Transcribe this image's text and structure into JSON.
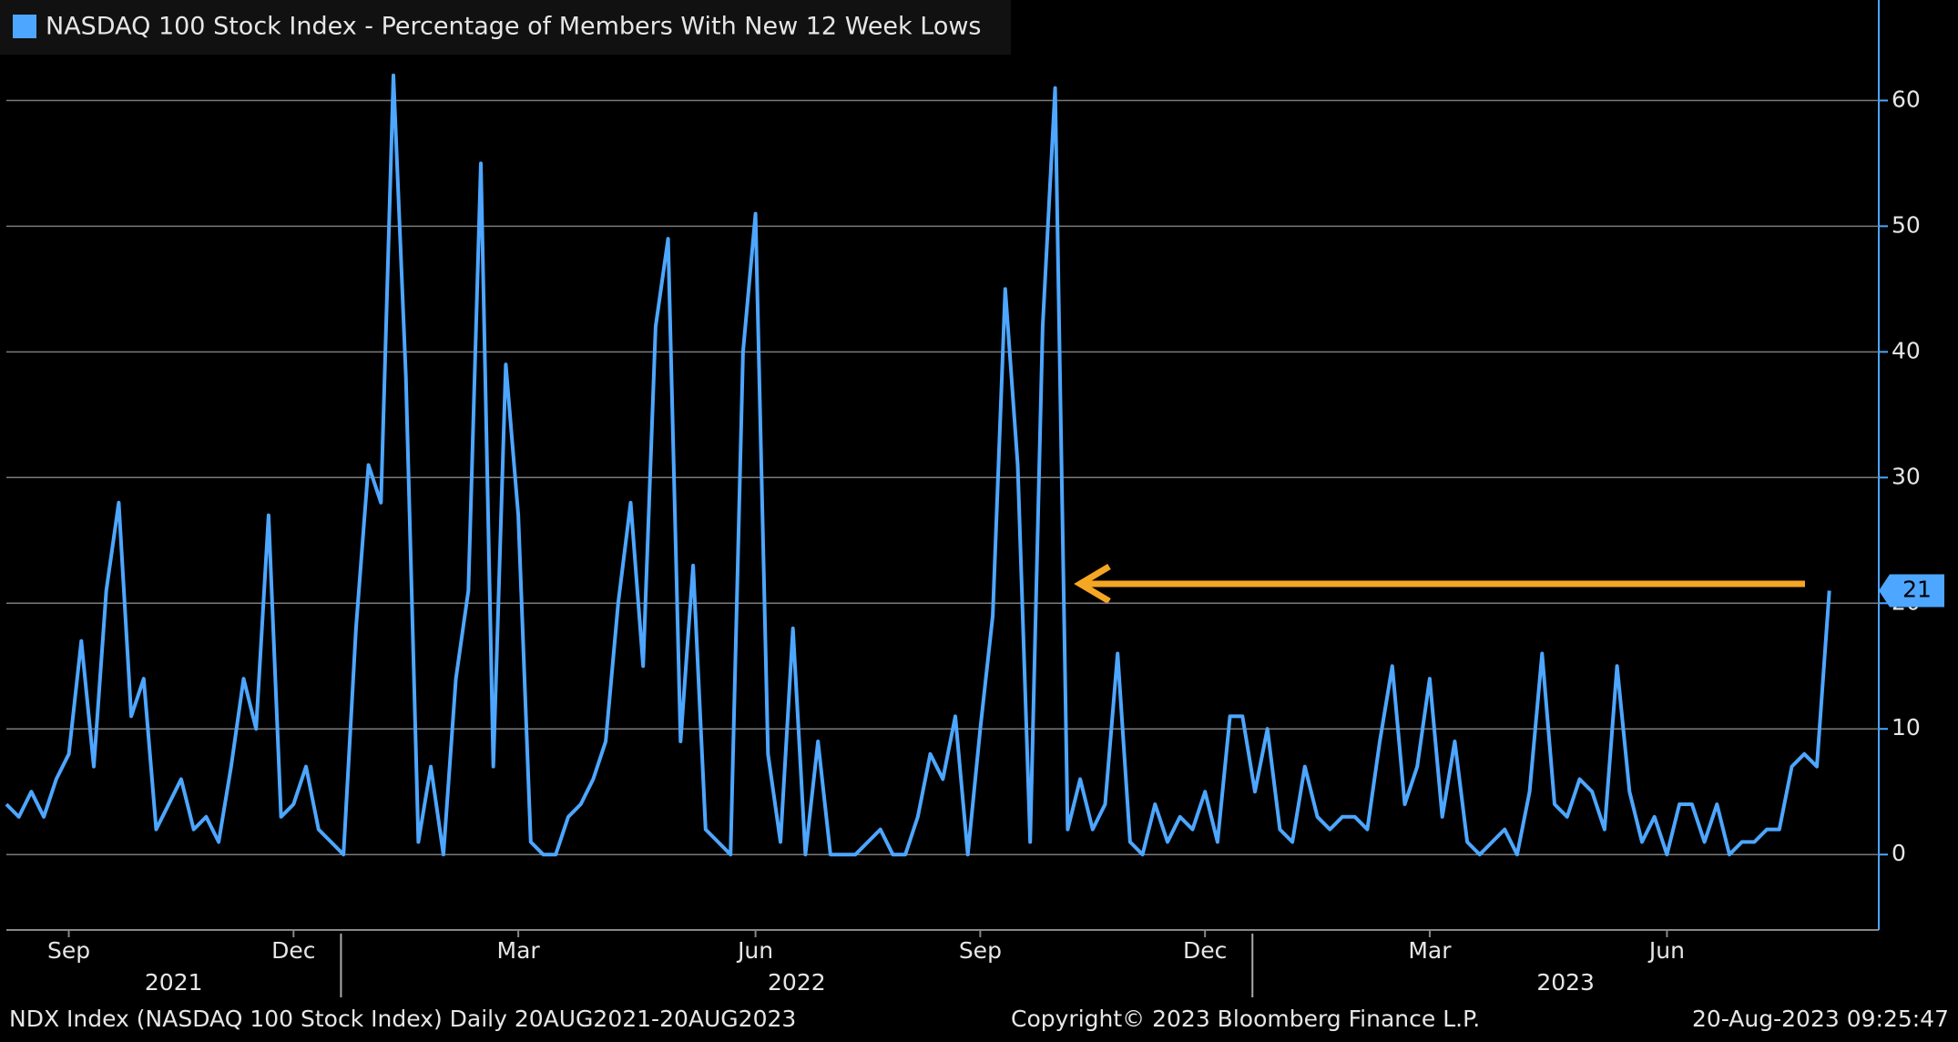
{
  "chart_data": {
    "type": "line",
    "title": "NASDAQ 100 Stock Index - Percentage of Members With New 12 Week Lows",
    "categories": [
      null,
      null,
      null,
      null,
      null,
      "Sep",
      null,
      null,
      null,
      null,
      null,
      null,
      null,
      null,
      null,
      null,
      null,
      null,
      null,
      null,
      null,
      null,
      null,
      "Dec",
      null,
      null,
      null,
      null,
      null,
      null,
      null,
      null,
      null,
      null,
      null,
      null,
      null,
      null,
      null,
      null,
      null,
      "Mar",
      null,
      null,
      null,
      null,
      null,
      null,
      null,
      null,
      null,
      null,
      null,
      null,
      null,
      null,
      null,
      null,
      null,
      null,
      "Jun",
      null,
      null,
      null,
      null,
      null,
      null,
      null,
      null,
      null,
      null,
      null,
      null,
      null,
      null,
      null,
      null,
      null,
      "Sep",
      null,
      null,
      null,
      null,
      null,
      null,
      null,
      null,
      null,
      null,
      null,
      null,
      null,
      null,
      null,
      null,
      null,
      "Dec",
      null,
      null,
      null,
      null,
      null,
      null,
      null,
      null,
      null,
      null,
      null,
      null,
      null,
      null,
      null,
      null,
      null,
      "Mar",
      null,
      null,
      null,
      null,
      null,
      null,
      null,
      null,
      null,
      null,
      null,
      null,
      null,
      null,
      null,
      null,
      null,
      null,
      "Jun",
      null,
      null,
      null,
      null,
      null,
      null,
      null,
      null,
      null,
      null,
      null,
      null,
      null
    ],
    "years": [
      "2021",
      "2022",
      "2023"
    ],
    "series": [
      {
        "name": "NASDAQ 100 Stock Index - Percentage of Members With New 12 Week Lows",
        "color": "#4da6ff",
        "values": [
          4,
          3,
          5,
          3,
          6,
          8,
          17,
          7,
          21,
          28,
          11,
          14,
          2,
          4,
          6,
          2,
          3,
          1,
          7,
          14,
          10,
          27,
          3,
          4,
          7,
          2,
          1,
          0,
          18,
          31,
          28,
          62,
          38,
          1,
          7,
          0,
          14,
          21,
          55,
          7,
          39,
          27,
          1,
          0,
          0,
          3,
          4,
          6,
          9,
          20,
          28,
          15,
          42,
          49,
          9,
          23,
          2,
          1,
          0,
          40,
          51,
          8,
          1,
          18,
          0,
          9,
          0,
          0,
          0,
          1,
          2,
          0,
          0,
          3,
          8,
          6,
          11,
          0,
          10,
          19,
          45,
          31,
          1,
          42,
          61,
          2,
          6,
          2,
          4,
          16,
          1,
          0,
          4,
          1,
          3,
          2,
          5,
          1,
          11,
          11,
          5,
          10,
          2,
          1,
          7,
          3,
          2,
          3,
          3,
          2,
          9,
          15,
          4,
          7,
          14,
          3,
          9,
          1,
          0,
          1,
          2,
          0,
          5,
          16,
          4,
          3,
          6,
          5,
          2,
          15,
          5,
          1,
          3,
          0,
          4,
          4,
          1,
          4,
          0,
          1,
          1,
          2,
          2,
          7,
          8,
          7,
          21
        ]
      }
    ],
    "ylim": [
      -6,
      68
    ],
    "yticks": [
      0,
      10,
      20,
      30,
      40,
      50,
      60
    ],
    "grid": true,
    "footer": {
      "left": "NDX Index (NASDAQ 100 Stock Index)  Daily 20AUG2021-20AUG2023",
      "center": "Copyright© 2023 Bloomberg Finance L.P.",
      "right": "20-Aug-2023 09:25:47"
    }
  }
}
